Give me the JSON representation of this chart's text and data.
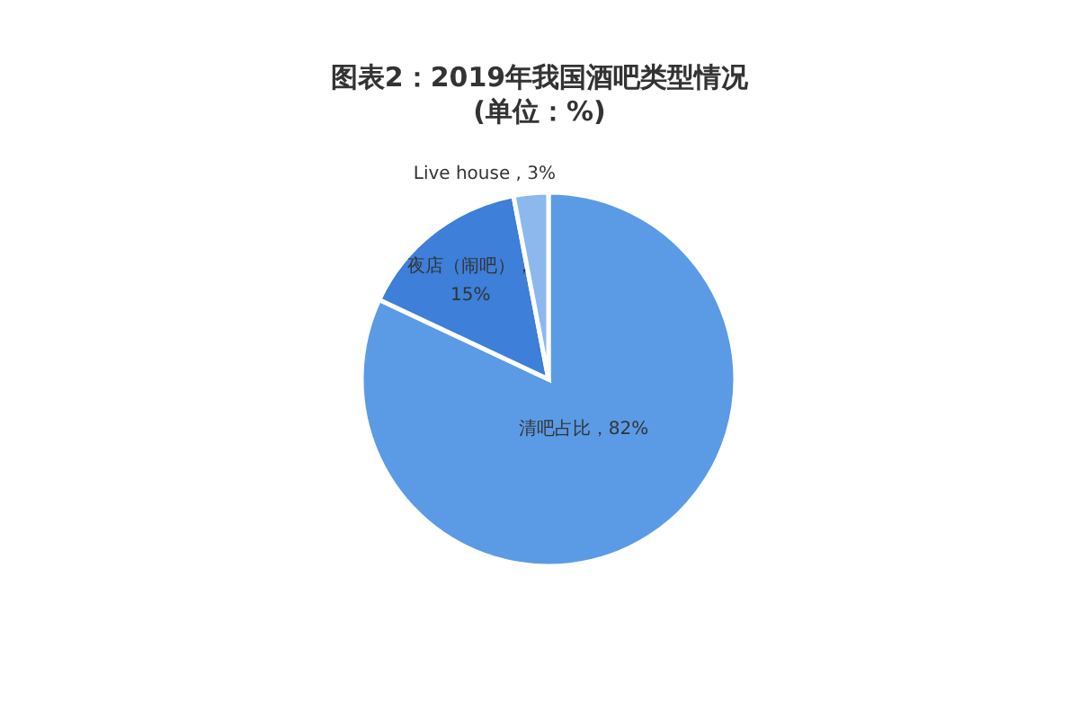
{
  "chart_data": {
    "type": "pie",
    "title": "图表2：2019年我国酒吧类型情况",
    "subtitle": "(单位：%)",
    "categories": [
      "清吧占比",
      "夜店（闹吧）",
      "Live house"
    ],
    "values": [
      82,
      15,
      3
    ],
    "colors": [
      "#5b9be6",
      "#3d7fd9",
      "#8db8ee"
    ],
    "value_labels": [
      "，82%",
      "，15%",
      " , 3%"
    ]
  }
}
